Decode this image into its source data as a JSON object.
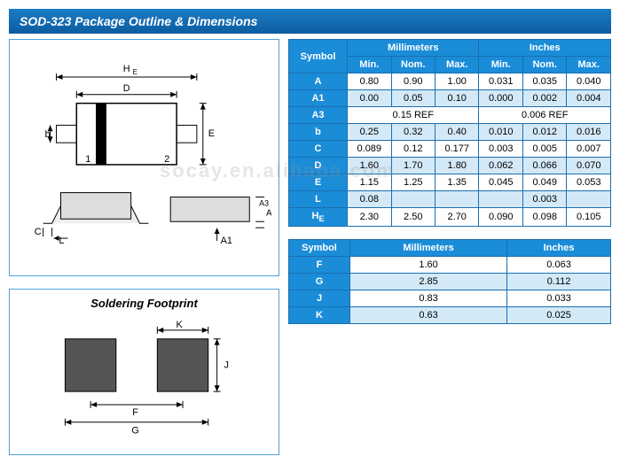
{
  "title": "SOD-323 Package Outline & Dimensions",
  "watermark": "socay.en.alibaba.com",
  "dimTable": {
    "colGroups": [
      "Millimeters",
      "Inches"
    ],
    "cols": [
      "Min.",
      "Nom.",
      "Max.",
      "Min.",
      "Nom.",
      "Max."
    ],
    "rows": [
      {
        "sym": "A",
        "mm": [
          "0.80",
          "0.90",
          "1.00"
        ],
        "in": [
          "0.031",
          "0.035",
          "0.040"
        ],
        "alt": false
      },
      {
        "sym": "A1",
        "mm": [
          "0.00",
          "0.05",
          "0.10"
        ],
        "in": [
          "0.000",
          "0.002",
          "0.004"
        ],
        "alt": true
      },
      {
        "sym": "A3",
        "ref_mm": "0.15 REF",
        "ref_in": "0.006 REF",
        "alt": false
      },
      {
        "sym": "b",
        "mm": [
          "0.25",
          "0.32",
          "0.40"
        ],
        "in": [
          "0.010",
          "0.012",
          "0.016"
        ],
        "alt": true
      },
      {
        "sym": "C",
        "mm": [
          "0.089",
          "0.12",
          "0.177"
        ],
        "in": [
          "0.003",
          "0.005",
          "0.007"
        ],
        "alt": false
      },
      {
        "sym": "D",
        "mm": [
          "1.60",
          "1.70",
          "1.80"
        ],
        "in": [
          "0.062",
          "0.066",
          "0.070"
        ],
        "alt": true
      },
      {
        "sym": "E",
        "mm": [
          "1.15",
          "1.25",
          "1.35"
        ],
        "in": [
          "0.045",
          "0.049",
          "0.053"
        ],
        "alt": false
      },
      {
        "sym": "L",
        "mm": [
          "0.08",
          "",
          ""
        ],
        "in": [
          "",
          "0.003",
          ""
        ],
        "alt": true
      },
      {
        "sym": "HE",
        "mm": [
          "2.30",
          "2.50",
          "2.70"
        ],
        "in": [
          "0.090",
          "0.098",
          "0.105"
        ],
        "alt": false,
        "sub": true
      }
    ]
  },
  "footprint": {
    "title": "Soldering Footprint",
    "cols": [
      "Symbol",
      "Millimeters",
      "Inches"
    ],
    "rows": [
      {
        "sym": "F",
        "mm": "1.60",
        "in": "0.063",
        "alt": false
      },
      {
        "sym": "G",
        "mm": "2.85",
        "in": "0.112",
        "alt": true
      },
      {
        "sym": "J",
        "mm": "0.83",
        "in": "0.033",
        "alt": false
      },
      {
        "sym": "K",
        "mm": "0.63",
        "in": "0.025",
        "alt": true
      }
    ]
  },
  "colors": {
    "headerBg": "#1a8cd8",
    "altRowBg": "#d4e9f7",
    "border": "#1a6fb0",
    "titleBarTop": "#1a7cc7",
    "titleBarBot": "#0d5ca0"
  }
}
